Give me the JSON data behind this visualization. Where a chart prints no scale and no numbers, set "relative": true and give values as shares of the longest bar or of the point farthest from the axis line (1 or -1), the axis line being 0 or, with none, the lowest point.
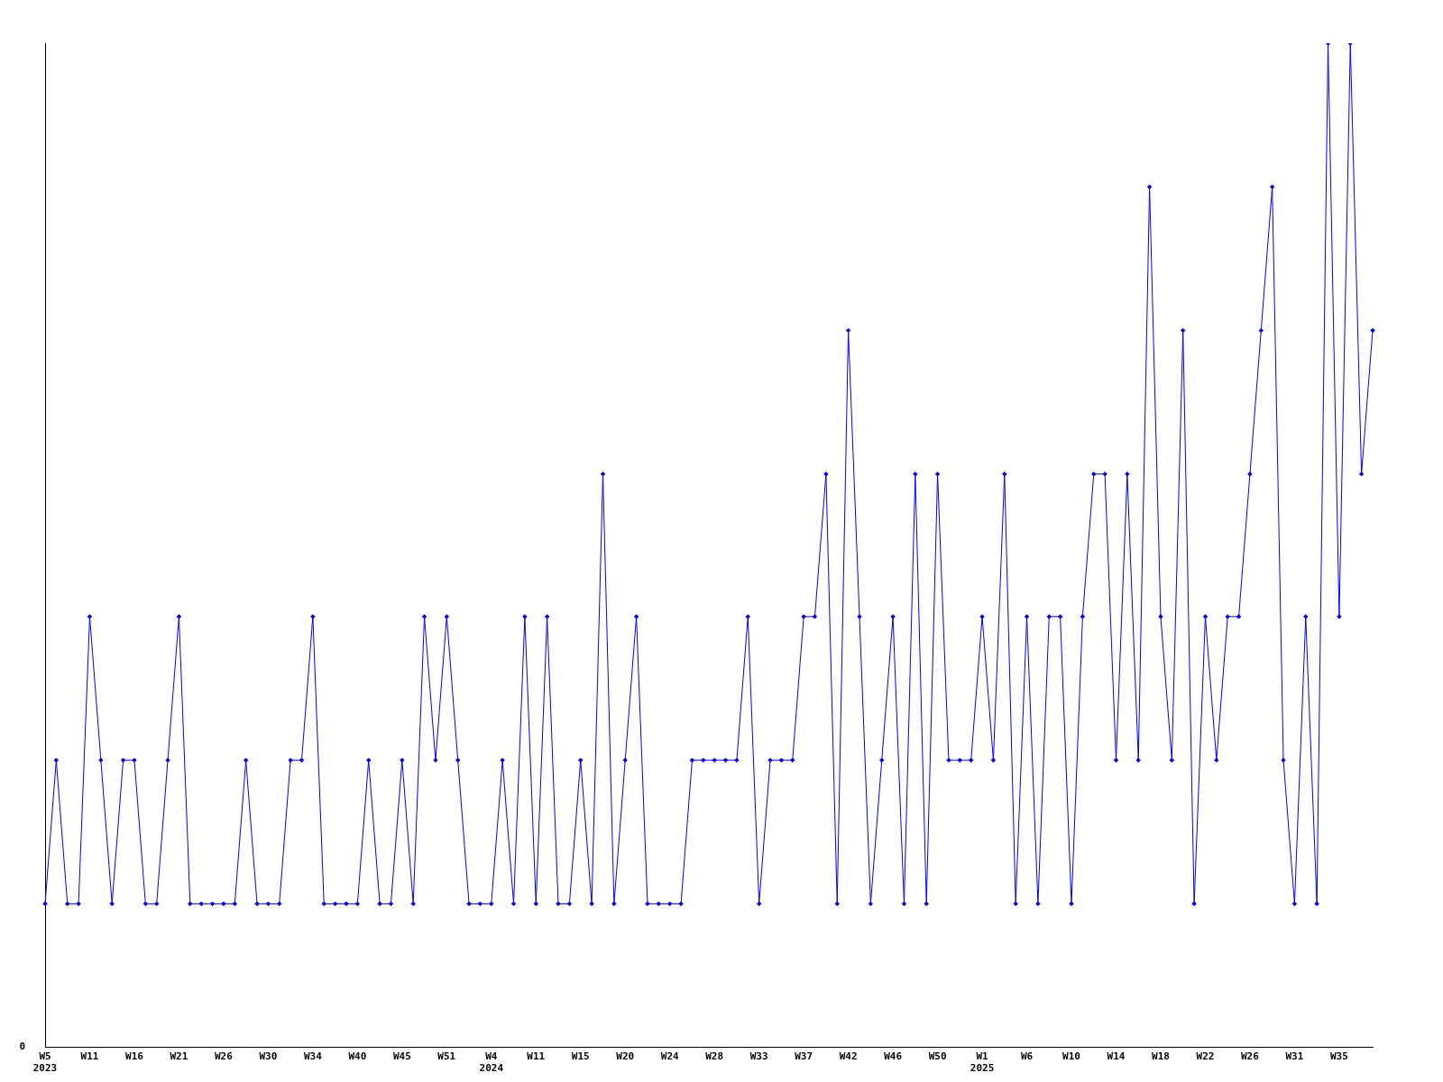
{
  "chart_data": {
    "type": "line",
    "relative": true,
    "marker": "diamond",
    "line_style": "solid",
    "grid": false,
    "legend": false,
    "annotations": [
      "0"
    ],
    "categories": [
      "W5\n2023",
      null,
      null,
      null,
      "W11",
      null,
      null,
      null,
      "W16",
      null,
      null,
      null,
      "W21",
      null,
      null,
      null,
      "W26",
      null,
      null,
      null,
      "W30",
      null,
      null,
      null,
      "W34",
      null,
      null,
      null,
      "W40",
      null,
      null,
      null,
      "W45",
      null,
      null,
      null,
      "W51",
      null,
      null,
      null,
      "W4\n2024",
      null,
      null,
      null,
      "W11",
      null,
      null,
      null,
      "W15",
      null,
      null,
      null,
      "W20",
      null,
      null,
      null,
      "W24",
      null,
      null,
      null,
      "W28",
      null,
      null,
      null,
      "W33",
      null,
      null,
      null,
      "W37",
      null,
      null,
      null,
      "W42",
      null,
      null,
      null,
      "W46",
      null,
      null,
      null,
      "W50",
      null,
      null,
      null,
      "W1\n2025",
      null,
      null,
      null,
      "W6",
      null,
      null,
      null,
      "W10",
      null,
      null,
      null,
      "W14",
      null,
      null,
      null,
      "W18",
      null,
      null,
      null,
      "W22",
      null,
      null,
      null,
      "W26",
      null,
      null,
      null,
      "W31",
      null,
      null,
      null,
      "W35",
      null,
      null,
      null
    ],
    "series": [
      {
        "color": "#0000ff",
        "values": [
          0.143,
          0.286,
          0.143,
          0.143,
          0.429,
          0.286,
          0.143,
          0.286,
          0.286,
          0.143,
          0.143,
          0.286,
          0.429,
          0.143,
          0.143,
          0.143,
          0.143,
          0.143,
          0.286,
          0.143,
          0.143,
          0.143,
          0.286,
          0.286,
          0.429,
          0.143,
          0.143,
          0.143,
          0.143,
          0.286,
          0.143,
          0.143,
          0.286,
          0.143,
          0.429,
          0.286,
          0.429,
          0.286,
          0.143,
          0.143,
          0.143,
          0.286,
          0.143,
          0.429,
          0.143,
          0.429,
          0.143,
          0.143,
          0.286,
          0.143,
          0.571,
          0.143,
          0.286,
          0.429,
          0.143,
          0.143,
          0.143,
          0.143,
          0.286,
          0.286,
          0.286,
          0.286,
          0.286,
          0.429,
          0.143,
          0.286,
          0.286,
          0.286,
          0.429,
          0.429,
          0.571,
          0.143,
          0.714,
          0.429,
          0.143,
          0.286,
          0.429,
          0.143,
          0.571,
          0.143,
          0.571,
          0.286,
          0.286,
          0.286,
          0.429,
          0.286,
          0.571,
          0.143,
          0.429,
          0.143,
          0.429,
          0.429,
          0.143,
          0.429,
          0.571,
          0.571,
          0.286,
          0.571,
          0.286,
          0.857,
          0.429,
          0.286,
          0.714,
          0.143,
          0.429,
          0.286,
          0.429,
          0.429,
          0.571,
          0.714,
          0.857,
          0.286,
          0.143,
          0.429,
          0.143,
          1,
          0.429,
          1,
          0.571,
          0.714
        ]
      }
    ]
  }
}
